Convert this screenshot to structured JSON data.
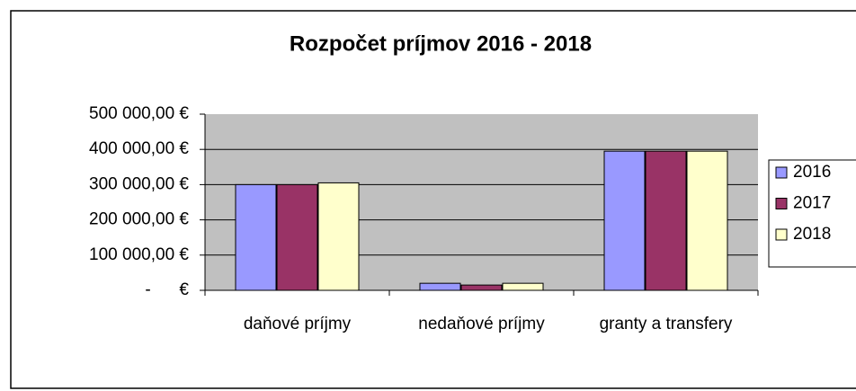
{
  "chart_data": {
    "type": "bar",
    "title": "Rozpočet príjmov 2016 - 2018",
    "categories": [
      "daňové príjmy",
      "nedaňové príjmy",
      "granty a transfery"
    ],
    "series": [
      {
        "name": "2016",
        "color": "#9999ff",
        "values": [
          300000,
          20000,
          395000
        ]
      },
      {
        "name": "2017",
        "color": "#993366",
        "values": [
          300000,
          15000,
          395000
        ]
      },
      {
        "name": "2018",
        "color": "#ffffcc",
        "values": [
          305000,
          20000,
          395000
        ]
      }
    ],
    "ylim": [
      0,
      500000
    ],
    "yticks": [
      {
        "value": 0,
        "label": "-      €"
      },
      {
        "value": 100000,
        "label": "100 000,00 €"
      },
      {
        "value": 200000,
        "label": "200 000,00 €"
      },
      {
        "value": 300000,
        "label": "300 000,00 €"
      },
      {
        "value": 400000,
        "label": "400 000,00 €"
      },
      {
        "value": 500000,
        "label": "500 000,00 €"
      }
    ],
    "grid": true,
    "legend": "right"
  }
}
